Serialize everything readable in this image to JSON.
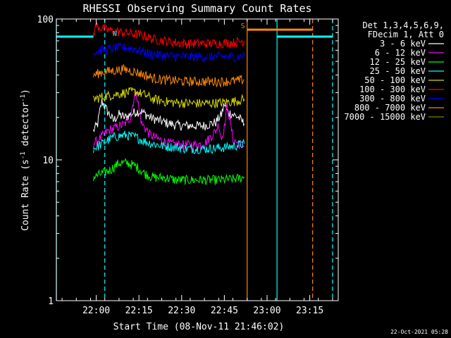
{
  "chart_data": {
    "type": "line",
    "title": "RHESSI Observing Summary Count Rates",
    "xlabel": "Start Time (08-Nov-11 21:46:02)",
    "ylabel_main": "Count Rate (s",
    "ylabel_sup": "-1",
    "ylabel_tail": " detector",
    "ylabel_end": ")",
    "y_scale": "log",
    "ylim": [
      1,
      100
    ],
    "xlim_minutes_after_2146": [
      0,
      99
    ],
    "y_ticks": [
      {
        "value": 1,
        "label": "1"
      },
      {
        "value": 10,
        "label": "10"
      },
      {
        "value": 100,
        "label": "100"
      }
    ],
    "x_ticks": [
      {
        "minute": 14,
        "label": "22:00"
      },
      {
        "minute": 29,
        "label": "22:15"
      },
      {
        "minute": 44,
        "label": "22:30"
      },
      {
        "minute": 59,
        "label": "22:45"
      },
      {
        "minute": 74,
        "label": "23:00"
      },
      {
        "minute": 89,
        "label": "23:15"
      }
    ],
    "legend_header": [
      "Det 1,3,4,5,6,9,",
      "FDecim 1, Att 0"
    ],
    "series": [
      {
        "name": "3 - 6 keV",
        "color": "#ffffff",
        "t": [
          13,
          14.5,
          16,
          18,
          20,
          22,
          24,
          26,
          28,
          30,
          33,
          36,
          40,
          44,
          48,
          52,
          56,
          58,
          59,
          60,
          62,
          64,
          65,
          66
        ],
        "y": [
          16,
          18,
          26,
          22,
          19,
          21,
          20,
          21,
          22,
          22,
          20,
          19,
          18,
          17.5,
          17.5,
          17.5,
          18.5,
          21,
          25,
          22,
          21,
          20,
          19,
          18
        ]
      },
      {
        "name": "6 - 12 keV",
        "color": "#ff00ff",
        "t": [
          13,
          15,
          18,
          21,
          24,
          26,
          27,
          28,
          29,
          30,
          33,
          36,
          40,
          44,
          48,
          52,
          56,
          57,
          58,
          59,
          60,
          61,
          62,
          64,
          66
        ],
        "y": [
          13,
          14,
          16,
          17,
          18,
          20,
          26,
          31,
          23,
          18,
          15,
          14,
          13,
          12.8,
          12.8,
          13,
          16,
          18,
          14,
          17,
          24,
          19,
          14,
          13,
          12.5
        ]
      },
      {
        "name": "12 - 25 keV",
        "color": "#00ff00",
        "t": [
          13,
          16,
          19,
          22,
          25,
          28,
          31,
          34,
          38,
          42,
          46,
          50,
          54,
          58,
          62,
          66
        ],
        "y": [
          7.5,
          8,
          8.5,
          9.5,
          9.5,
          9,
          8,
          7.5,
          7.5,
          7.2,
          7.2,
          7.2,
          7.2,
          7.2,
          7.3,
          7.5
        ]
      },
      {
        "name": "25 - 50 keV",
        "color": "#00ffff",
        "t": [
          13,
          16,
          20,
          24,
          28,
          31,
          34,
          38,
          42,
          46,
          50,
          54,
          58,
          62,
          66
        ],
        "y": [
          12,
          13,
          14.5,
          15,
          14.5,
          13.5,
          13,
          12.5,
          12.3,
          12,
          12,
          12,
          12.2,
          12.5,
          13
        ]
      },
      {
        "name": "50 - 100 keV",
        "color": "#d8d800",
        "t": [
          13,
          16,
          20,
          24,
          28,
          31,
          34,
          38,
          42,
          46,
          50,
          54,
          58,
          62,
          66
        ],
        "y": [
          27,
          28,
          29,
          30,
          30.5,
          29,
          27,
          26,
          25.5,
          25.3,
          25.2,
          25.2,
          25.5,
          26,
          27
        ]
      },
      {
        "name": "100 - 300 keV",
        "color": "#ff0000",
        "t": [
          13,
          14,
          16,
          20,
          24,
          28,
          31,
          34,
          38,
          42,
          46,
          50,
          54,
          58,
          62,
          66
        ],
        "y": [
          78,
          90,
          86,
          82,
          80,
          78,
          76,
          72,
          70,
          68,
          67,
          67,
          67,
          67.5,
          68,
          70
        ]
      },
      {
        "name": "300 - 800 keV",
        "color": "#0000ff",
        "t": [
          13,
          16,
          20,
          24,
          28,
          31,
          34,
          38,
          42,
          46,
          50,
          54,
          58,
          62,
          66
        ],
        "y": [
          58,
          60,
          62,
          63,
          61,
          58,
          56,
          55,
          54.5,
          54,
          54,
          54,
          54,
          54,
          54.5
        ]
      },
      {
        "name": "800 - 7000 keV",
        "color": "#ff8800",
        "t": [
          13,
          16,
          20,
          24,
          28,
          31,
          34,
          38,
          42,
          46,
          50,
          54,
          58,
          62,
          66
        ],
        "y": [
          40,
          42,
          43,
          44,
          42,
          40,
          38,
          37,
          36.5,
          36,
          36,
          36,
          36,
          36.3,
          37
        ]
      },
      {
        "name": "7000 - 15000 keV",
        "color": "#808000",
        "t": [],
        "y": []
      }
    ],
    "eclipse_lines": [
      {
        "color": "#00ffff",
        "dashed": false,
        "minute": 0
      },
      {
        "color": "#00ffff",
        "dashed": true,
        "minute": 17
      },
      {
        "color": "#ff8800",
        "dashed": false,
        "minute": 67
      },
      {
        "color": "#00ffff",
        "dashed": false,
        "minute": 77.5
      },
      {
        "color": "#ff8800",
        "dashed": true,
        "minute": 90
      },
      {
        "color": "#00ffff",
        "dashed": true,
        "minute": 97
      }
    ],
    "flag_bars": [
      {
        "color": "#00ffff",
        "t0": 0,
        "t1": 13,
        "y": 75
      },
      {
        "color": "#ff8800",
        "t0": 67,
        "t1": 90,
        "y": 84
      },
      {
        "color": "#00ffff",
        "t0": 77.5,
        "t1": 97,
        "y": 75
      }
    ],
    "flag_letters": [
      {
        "label": "N",
        "color": "#00ffff",
        "minute": 20.5,
        "y": 76
      },
      {
        "label": "S",
        "color": "#ff8800",
        "minute": 65.5,
        "y": 86
      }
    ],
    "timestamp": "22-Oct-2021 05:28"
  }
}
